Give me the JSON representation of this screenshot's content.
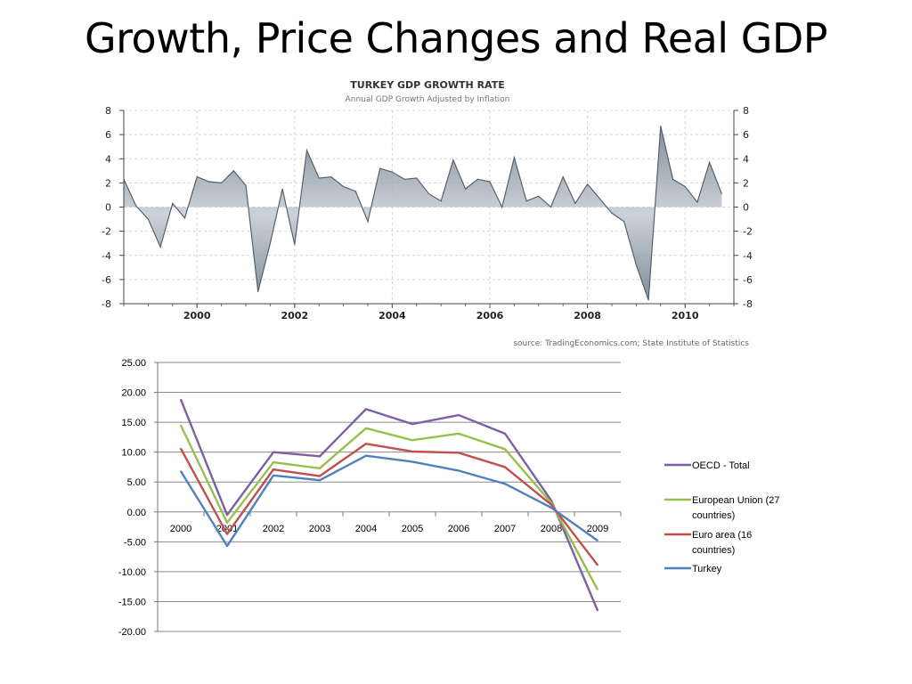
{
  "slide": {
    "title": "Growth, Price Changes and Real GDP"
  },
  "chart_data": [
    {
      "type": "area",
      "title": "TURKEY GDP GROWTH RATE",
      "subtitle": "Annual GDP Growth Adjusted by Inflation",
      "source": "source: TradingEconomics.com; State Institute of Statistics",
      "xlabel": "",
      "ylabel": "",
      "xlim": [
        1998.5,
        2011.0
      ],
      "ylim": [
        -8,
        8
      ],
      "yticks": [
        "8",
        "6",
        "4",
        "2",
        "0",
        "-2",
        "-4",
        "-6",
        "-8"
      ],
      "xticks": [
        "2000",
        "2002",
        "2004",
        "2006",
        "2008",
        "2010"
      ],
      "grid": true,
      "axes": "left-and-right",
      "x": [
        1998.5,
        1998.75,
        1999.0,
        1999.25,
        1999.5,
        1999.75,
        2000.0,
        2000.25,
        2000.5,
        2000.75,
        2001.0,
        2001.25,
        2001.5,
        2001.75,
        2002.0,
        2002.25,
        2002.5,
        2002.75,
        2003.0,
        2003.25,
        2003.5,
        2003.75,
        2004.0,
        2004.25,
        2004.5,
        2004.75,
        2005.0,
        2005.25,
        2005.5,
        2005.75,
        2006.0,
        2006.25,
        2006.5,
        2006.75,
        2007.0,
        2007.25,
        2007.5,
        2007.75,
        2008.0,
        2008.25,
        2008.5,
        2008.75,
        2009.0,
        2009.25,
        2009.5,
        2009.75,
        2010.0,
        2010.25,
        2010.5,
        2010.75
      ],
      "values": [
        2.3,
        0.1,
        -1.0,
        -3.3,
        0.3,
        -0.9,
        2.5,
        2.1,
        2.0,
        3.0,
        1.8,
        -7.0,
        -3.0,
        1.5,
        -3.1,
        4.7,
        2.4,
        2.5,
        1.7,
        1.3,
        -1.2,
        3.2,
        2.9,
        2.3,
        2.4,
        1.1,
        0.5,
        3.9,
        1.5,
        2.3,
        2.1,
        0.0,
        4.1,
        0.5,
        0.9,
        0.0,
        2.5,
        0.3,
        1.9,
        0.7,
        -0.5,
        -1.2,
        -4.8,
        -7.7,
        6.7,
        2.3,
        1.7,
        0.4,
        3.7,
        1.1
      ],
      "colors": {
        "fill": "#7c8897",
        "line": "#56606c"
      }
    },
    {
      "type": "line",
      "title": "",
      "xlabel": "",
      "ylabel": "",
      "categories": [
        "2000",
        "2001",
        "2002",
        "2003",
        "2004",
        "2005",
        "2006",
        "2007",
        "2008",
        "2009"
      ],
      "ylim": [
        -20,
        25
      ],
      "yticks": [
        "25.00",
        "20.00",
        "15.00",
        "10.00",
        "5.00",
        "0.00",
        "-5.00",
        "-10.00",
        "-15.00",
        "-20.00"
      ],
      "grid": true,
      "legend": "right",
      "series": [
        {
          "name": "OECD - Total",
          "color": "#7f5fa4",
          "values": [
            18.8,
            -0.5,
            10.0,
            9.3,
            17.2,
            14.7,
            16.2,
            13.1,
            1.9,
            -16.5
          ]
        },
        {
          "name": "European Union (27 countries)",
          "color": "#98bf4d",
          "values": [
            14.5,
            -1.8,
            8.3,
            7.3,
            14.0,
            12.0,
            13.1,
            10.5,
            1.5,
            -13.0
          ]
        },
        {
          "name": "Euro area (16 countries)",
          "color": "#c0504d",
          "values": [
            10.6,
            -3.7,
            7.1,
            6.0,
            11.4,
            10.1,
            9.9,
            7.5,
            1.2,
            -8.9
          ]
        },
        {
          "name": "Turkey",
          "color": "#4f81bd",
          "values": [
            6.8,
            -5.7,
            6.1,
            5.3,
            9.4,
            8.4,
            6.9,
            4.7,
            0.7,
            -4.8
          ]
        }
      ]
    }
  ]
}
